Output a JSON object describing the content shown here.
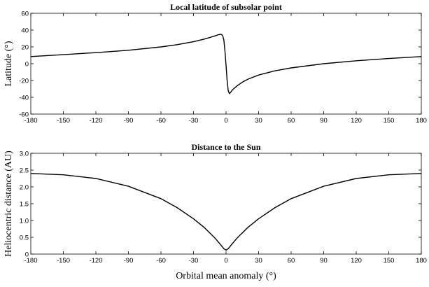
{
  "chart_data": [
    {
      "type": "line",
      "title": "Local latitude of subsolar point",
      "xlabel": "",
      "ylabel": "Latitude (°)",
      "xlim": [
        -180,
        180
      ],
      "ylim": [
        -60,
        60
      ],
      "xticks": [
        "-180",
        "-150",
        "-120",
        "-90",
        "-60",
        "-30",
        "0",
        "30",
        "60",
        "90",
        "120",
        "150",
        "180"
      ],
      "yticks": [
        "60",
        "40",
        "20",
        "0",
        "-20",
        "-40",
        "-60"
      ],
      "grid": false,
      "x": [
        -180,
        -150,
        -120,
        -90,
        -60,
        -45,
        -30,
        -20,
        -15,
        -10,
        -7,
        -5,
        -4,
        -3,
        -2,
        -1,
        0,
        1,
        2,
        3,
        4,
        6,
        10,
        15,
        20,
        30,
        45,
        60,
        90,
        120,
        150,
        180
      ],
      "y": [
        8.5,
        10.8,
        13.2,
        16.0,
        20.0,
        22.7,
        26.2,
        29.3,
        31.2,
        33.2,
        34.5,
        35.0,
        34.7,
        33.0,
        28.0,
        15.0,
        -2.0,
        -20.0,
        -32.0,
        -35.5,
        -34.5,
        -31.0,
        -26.5,
        -22.0,
        -18.5,
        -13.5,
        -8.5,
        -5.0,
        0.0,
        3.5,
        6.2,
        8.5
      ]
    },
    {
      "type": "line",
      "title": "Distance to the Sun",
      "xlabel": "Orbital mean anomaly (°)",
      "ylabel": "Heliocentric distance (AU)",
      "xlim": [
        -180,
        180
      ],
      "ylim": [
        0,
        3
      ],
      "xticks": [
        "-180",
        "-150",
        "-120",
        "-90",
        "-60",
        "-30",
        "0",
        "30",
        "60",
        "90",
        "120",
        "150",
        "180"
      ],
      "yticks": [
        "3.0",
        "2.5",
        "2.0",
        "1.5",
        "1.0",
        "0.5",
        "0"
      ],
      "grid": false,
      "x": [
        -180,
        -150,
        -120,
        -90,
        -60,
        -45,
        -30,
        -20,
        -10,
        -5,
        -2,
        0,
        2,
        5,
        10,
        20,
        30,
        45,
        60,
        90,
        120,
        150,
        180
      ],
      "y": [
        2.4,
        2.36,
        2.25,
        2.02,
        1.65,
        1.38,
        1.05,
        0.79,
        0.47,
        0.28,
        0.16,
        0.12,
        0.16,
        0.28,
        0.47,
        0.79,
        1.05,
        1.38,
        1.65,
        2.02,
        2.25,
        2.36,
        2.4
      ]
    }
  ]
}
